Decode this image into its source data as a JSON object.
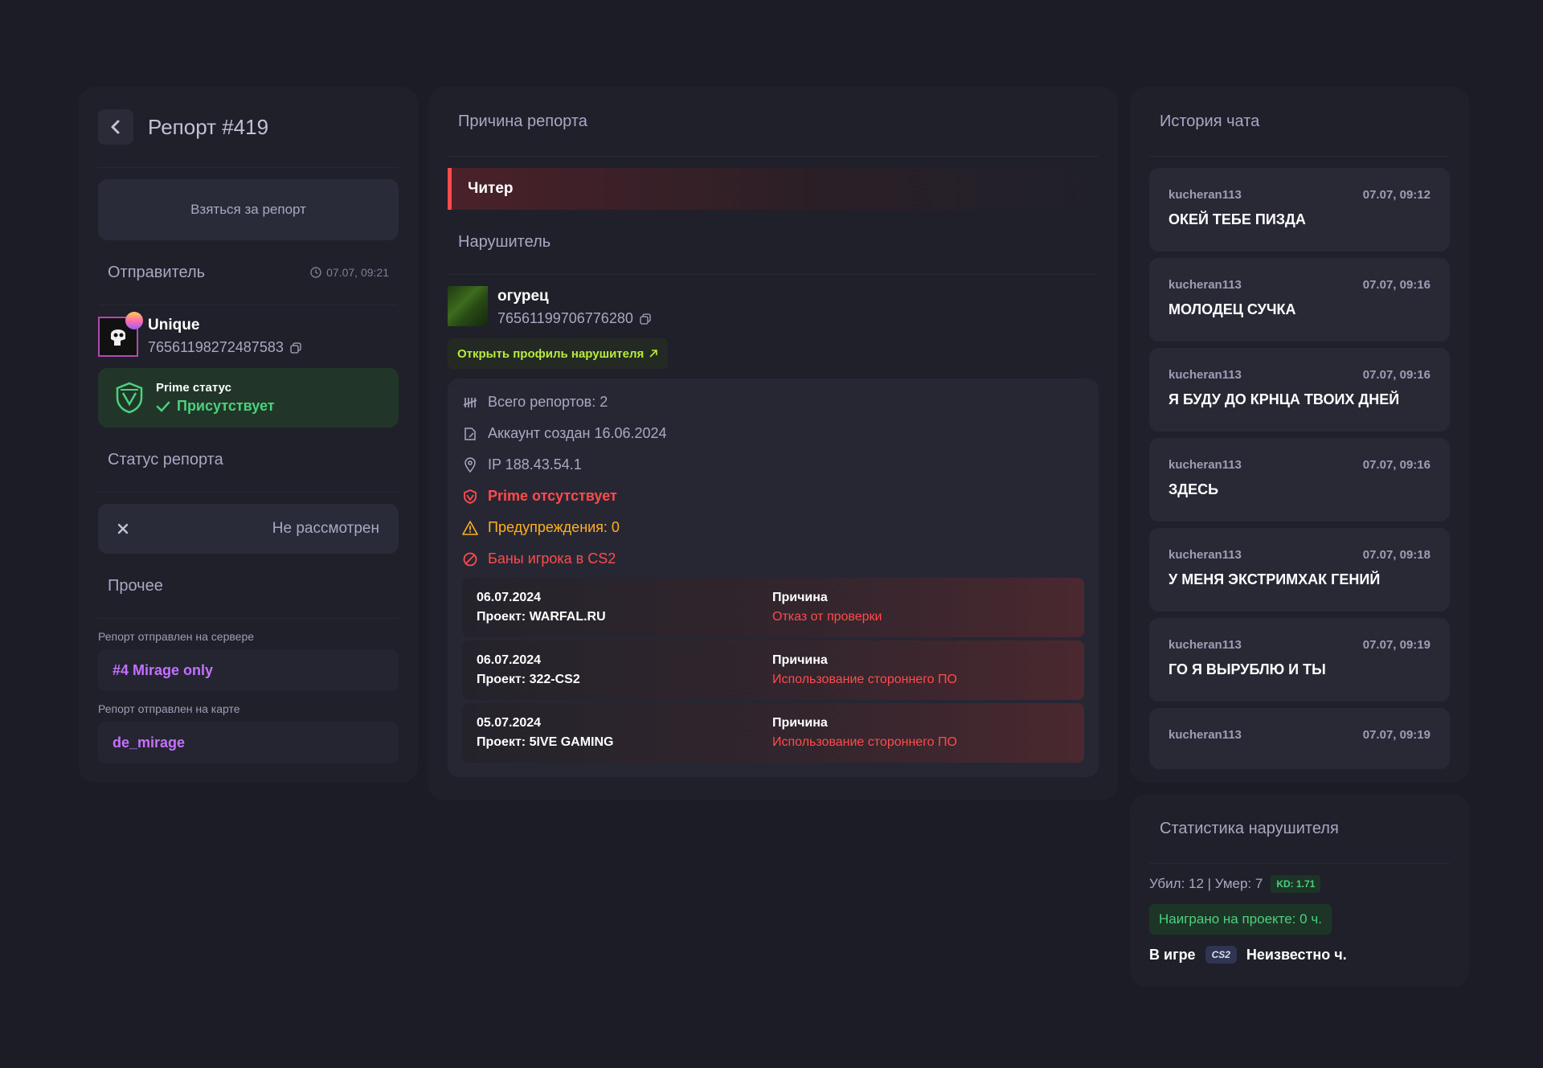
{
  "report": {
    "title": "Репорт #419",
    "take_button": "Взяться за репорт",
    "sender_heading": "Отправитель",
    "sender_time": "07.07, 09:21",
    "sender": {
      "name": "Unique",
      "steam_id": "76561198272487583"
    },
    "prime": {
      "label": "Prime статус",
      "value": "Присутствует"
    },
    "status_heading": "Статус репорта",
    "status_value": "Не рассмотрен",
    "other_heading": "Прочее",
    "server_label": "Репорт отправлен на сервере",
    "server_value": "#4 Mirage only",
    "map_label": "Репорт отправлен на карте",
    "map_value": "de_mirage"
  },
  "reason": {
    "heading": "Причина репорта",
    "value": "Читер"
  },
  "violator": {
    "heading": "Нарушитель",
    "name": "огурец",
    "steam_id": "76561199706776280",
    "open_profile": "Открыть профиль нарушителя",
    "total_reports": "Всего репортов: 2",
    "created": "Аккаунт создан 16.06.2024",
    "ip": "IP 188.43.54.1",
    "prime": "Prime отсутствует",
    "warnings": "Предупреждения: 0",
    "bans_heading": "Баны игрока в CS2",
    "bans": [
      {
        "date": "06.07.2024",
        "project": "Проект: WARFAL.RU",
        "reason_label": "Причина",
        "reason": "Отказ от проверки"
      },
      {
        "date": "06.07.2024",
        "project": "Проект: 322-CS2",
        "reason_label": "Причина",
        "reason": "Использование стороннего ПО"
      },
      {
        "date": "05.07.2024",
        "project": "Проект: 5IVE GAMING",
        "reason_label": "Причина",
        "reason": "Использование стороннего ПО"
      }
    ]
  },
  "chat": {
    "heading": "История чата",
    "messages": [
      {
        "user": "kucheran113",
        "time": "07.07, 09:12",
        "text": "ОКЕЙ ТЕБЕ ПИЗДА"
      },
      {
        "user": "kucheran113",
        "time": "07.07, 09:16",
        "text": "МОЛОДЕЦ СУЧКА"
      },
      {
        "user": "kucheran113",
        "time": "07.07, 09:16",
        "text": "Я БУДУ ДО КРНЦА ТВОИХ ДНЕЙ"
      },
      {
        "user": "kucheran113",
        "time": "07.07, 09:16",
        "text": "ЗДЕСЬ"
      },
      {
        "user": "kucheran113",
        "time": "07.07, 09:18",
        "text": "У МЕНЯ ЭКСТРИМХАК ГЕНИЙ"
      },
      {
        "user": "kucheran113",
        "time": "07.07, 09:19",
        "text": "ГО Я ВЫРУБЛЮ И ТЫ"
      },
      {
        "user": "kucheran113",
        "time": "07.07, 09:19",
        "text": ""
      }
    ]
  },
  "stats": {
    "heading": "Статистика нарушителя",
    "kills_deaths": "Убил: 12 | Умер: 7",
    "kd": "KD: 1.71",
    "played": "Наиграно на проекте: 0 ч.",
    "ingame_label": "В игре",
    "game_logo": "CS2",
    "ingame_value": "Неизвестно ч."
  },
  "colors": {
    "background": "#1c1c26",
    "panel": "#20202b",
    "danger": "#ff4b4b",
    "success": "#4cd07d",
    "accent_purple": "#c471ff",
    "link_green": "#b7ec3e",
    "warning": "#ffb020"
  }
}
